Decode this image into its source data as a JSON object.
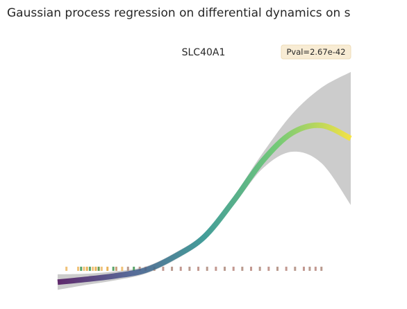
{
  "chart_data": {
    "type": "line",
    "title": "Gaussian process regression on differential dynamics on s",
    "subtitle": "SLC40A1",
    "annotation": "Pval=2.67e-42",
    "x": [
      0,
      0.1,
      0.2,
      0.3,
      0.4,
      0.5,
      0.6,
      0.7,
      0.8,
      0.9,
      1.0
    ],
    "series": [
      {
        "values": [
          0.04,
          0.053,
          0.069,
          0.094,
          0.156,
          0.244,
          0.406,
          0.588,
          0.713,
          0.747,
          0.688
        ],
        "colormap": [
          "#440154",
          "#3b528b",
          "#21918c",
          "#5ec962",
          "#fde725"
        ]
      }
    ],
    "band": {
      "color": "#cccccc",
      "upper": [
        0.075,
        0.078,
        0.089,
        0.11,
        0.172,
        0.26,
        0.426,
        0.623,
        0.798,
        0.917,
        0.988
      ],
      "lower": [
        0.005,
        0.028,
        0.049,
        0.078,
        0.14,
        0.228,
        0.386,
        0.553,
        0.628,
        0.577,
        0.388
      ]
    },
    "rug": {
      "x": [
        0.03,
        0.07,
        0.08,
        0.09,
        0.1,
        0.11,
        0.12,
        0.13,
        0.14,
        0.15,
        0.17,
        0.19,
        0.2,
        0.22,
        0.24,
        0.26,
        0.28,
        0.3,
        0.33,
        0.36,
        0.39,
        0.42,
        0.45,
        0.48,
        0.51,
        0.54,
        0.57,
        0.6,
        0.63,
        0.66,
        0.69,
        0.72,
        0.75,
        0.78,
        0.81,
        0.84,
        0.86,
        0.88,
        0.9
      ],
      "colors": [
        "#f0c27a",
        "#f0c27a",
        "#5aa469",
        "#f0c27a",
        "#e8b35a",
        "#5aa469",
        "#f0c27a",
        "#e8b35a",
        "#6a994e",
        "#f0c27a",
        "#e8b35a",
        "#5aa469",
        "#c9a07a",
        "#f0c27a",
        "#b99a8e",
        "#5aa469",
        "#b99a8e",
        "#c29890",
        "#b99a8e",
        "#c29890",
        "#b99a8e",
        "#c29890",
        "#b99a8e",
        "#c29890",
        "#b99a8e",
        "#c29890",
        "#b99a8e",
        "#c29890",
        "#b99a8e",
        "#c29890",
        "#b99a8e",
        "#c29890",
        "#b99a8e",
        "#c29890",
        "#b99a8e",
        "#c29890",
        "#b99a8e",
        "#c29890",
        "#b99a8e"
      ]
    },
    "xlim": [
      0,
      1
    ],
    "ylim": [
      0,
      1
    ]
  }
}
